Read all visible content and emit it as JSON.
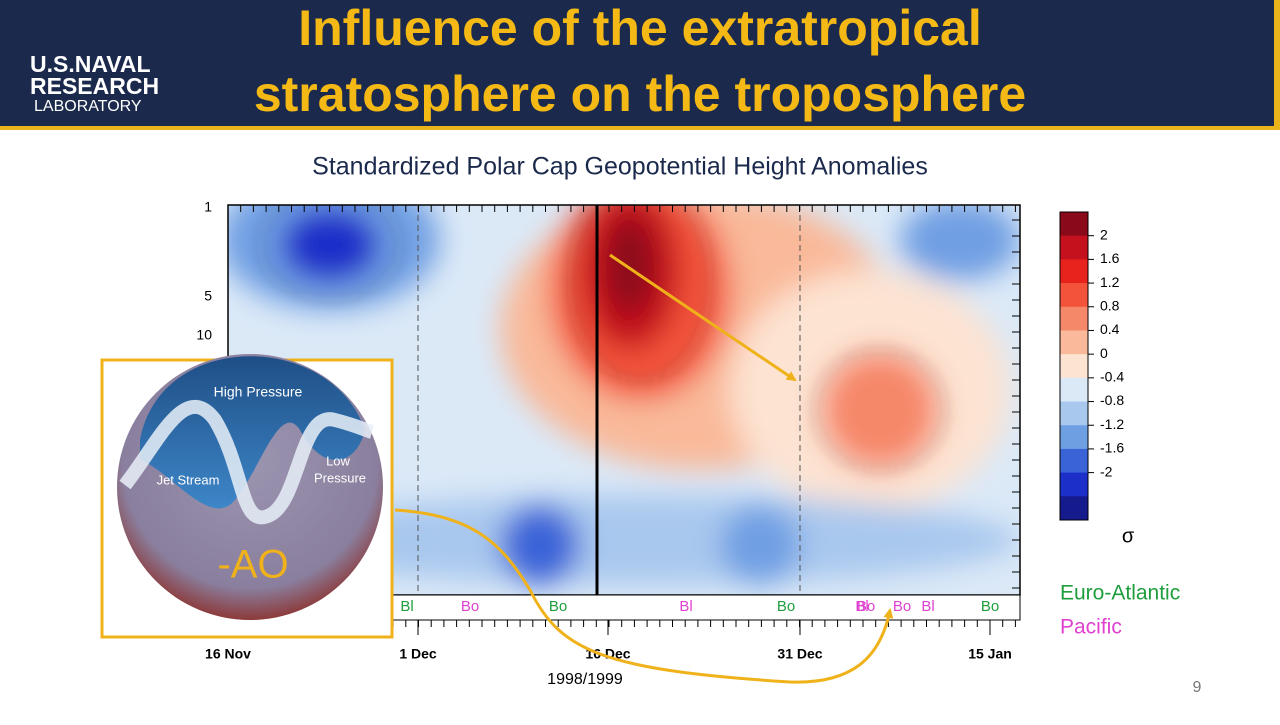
{
  "header": {
    "logo": [
      "U.S.NAVAL",
      "RESEARCH",
      "LABORATORY"
    ],
    "title": [
      "Influence of the extratropical",
      "stratosphere on the troposphere"
    ]
  },
  "figure": {
    "title": "Standardized Polar Cap Geopotential Height Anomalies",
    "y_ticks": [
      "1",
      "5",
      "10"
    ],
    "x_ticks": [
      "16 Nov",
      "1 Dec",
      "16 Dec",
      "31 Dec",
      "15 Jan"
    ],
    "x_label": "1998/1999",
    "colorbar": {
      "labels": [
        "2",
        "1.6",
        "1.2",
        "0.8",
        "0.4",
        "0",
        "-0.4",
        "-0.8",
        "-1.2",
        "-1.6",
        "-2"
      ],
      "colors": [
        "#8b0a1a",
        "#c4111d",
        "#e8231e",
        "#f2533a",
        "#f6886a",
        "#f9b99a",
        "#fde3d2",
        "#dbe9f7",
        "#a9c8ee",
        "#6f9fe3",
        "#3a63d8",
        "#1c2fc9",
        "#151a8c"
      ],
      "unit": "σ"
    },
    "events": [
      {
        "label": "Bl",
        "color": "#1e9e3c"
      },
      {
        "label": "Bo",
        "color": "#e040d0"
      },
      {
        "label": "Bo",
        "color": "#1e9e3c"
      },
      {
        "label": "Bl",
        "color": "#e040d0"
      },
      {
        "label": "Bo",
        "color": "#1e9e3c"
      },
      {
        "label": "Bl",
        "color": "#e040d0"
      },
      {
        "label": "Bo",
        "color": "#e040d0"
      },
      {
        "label": "Bo",
        "color": "#e040d0"
      },
      {
        "label": "Bl",
        "color": "#e040d0"
      },
      {
        "label": "Bo",
        "color": "#1e9e3c"
      }
    ]
  },
  "legend": {
    "euro_atlantic": {
      "label": "Euro-Atlantic",
      "color": "#1e9e3c"
    },
    "pacific": {
      "label": "Pacific",
      "color": "#e040d0"
    }
  },
  "inset": {
    "high": "High Pressure",
    "jet": "Jet Stream",
    "low": [
      "Low",
      "Pressure"
    ],
    "index": "-AO"
  },
  "page_number": "9"
}
